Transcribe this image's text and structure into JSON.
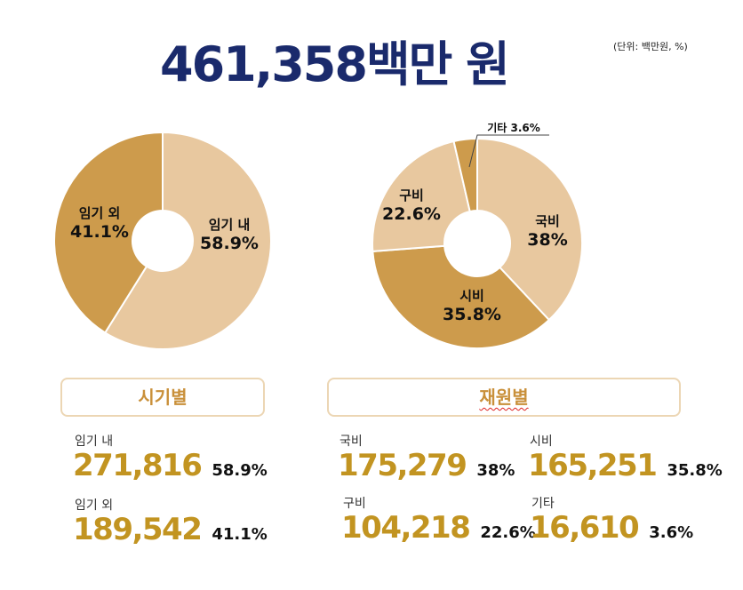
{
  "header": {
    "title": "461,358백만 원",
    "unit_note": "(단위: 백만원, %)"
  },
  "sections": {
    "by_period": "시기별",
    "by_source": "재원별"
  },
  "colors": {
    "light": "#e8c89f",
    "dark": "#cd9b4c",
    "title": "#1a2a6c",
    "value": "#c29421",
    "section_text": "#c9903a"
  },
  "chart_data": [
    {
      "type": "pie",
      "title": "",
      "slices": [
        {
          "label": "임기 내",
          "value": 58.9,
          "value_label": "58.9%",
          "color": "#e8c89f"
        },
        {
          "label": "임기 외",
          "value": 41.1,
          "value_label": "41.1%",
          "color": "#cd9b4c"
        }
      ]
    },
    {
      "type": "pie",
      "title": "",
      "slices": [
        {
          "label": "국비",
          "value": 38,
          "value_label": "38%",
          "color": "#e8c89f"
        },
        {
          "label": "시비",
          "value": 35.8,
          "value_label": "35.8%",
          "color": "#cd9b4c"
        },
        {
          "label": "구비",
          "value": 22.6,
          "value_label": "22.6%",
          "color": "#e8c89f"
        },
        {
          "label": "기타",
          "value": 3.6,
          "value_label": "기타 3.6%",
          "color": "#cd9b4c"
        }
      ]
    }
  ],
  "stats": {
    "period": [
      {
        "label": "임기 내",
        "value": "271,816",
        "pct": "58.9%"
      },
      {
        "label": "임기 외",
        "value": "189,542",
        "pct": "41.1%"
      }
    ],
    "source": [
      {
        "label": "국비",
        "value": "175,279",
        "pct": "38%"
      },
      {
        "label": "시비",
        "value": "165,251",
        "pct": "35.8%"
      },
      {
        "label": "구비",
        "value": "104,218",
        "pct": "22.6%"
      },
      {
        "label": "기타",
        "value": "16,610",
        "pct": "3.6%"
      }
    ]
  }
}
